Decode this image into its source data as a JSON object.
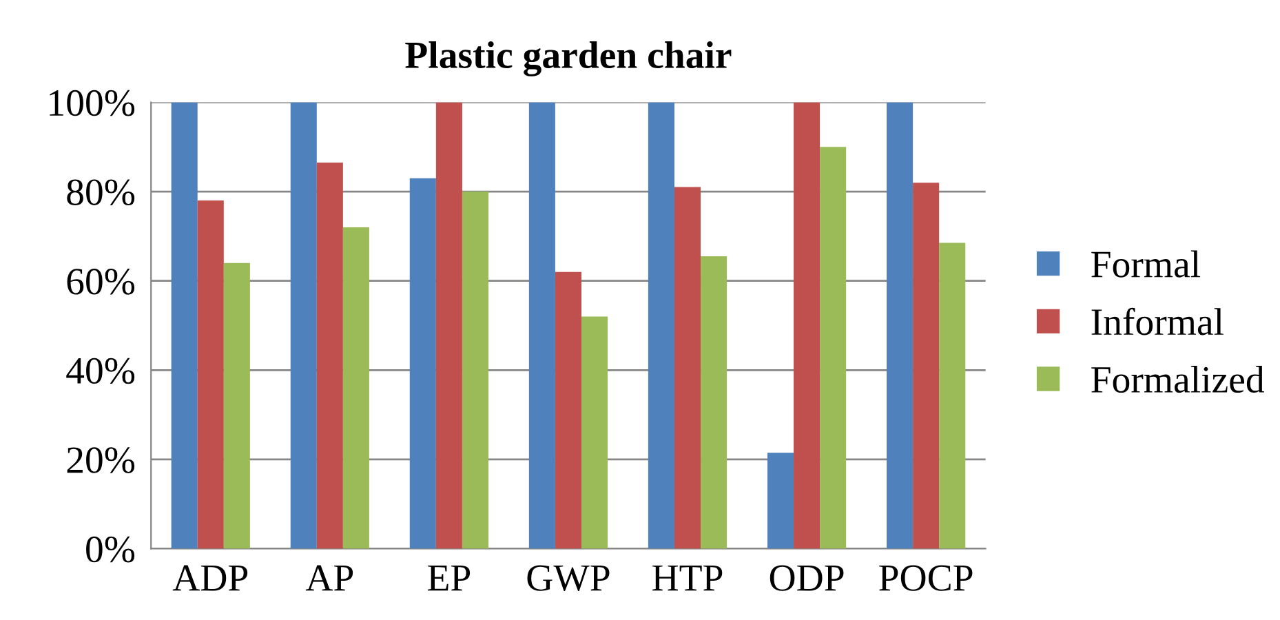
{
  "chart_data": {
    "type": "bar",
    "title": "Plastic garden chair",
    "categories": [
      "ADP",
      "AP",
      "EP",
      "GWP",
      "HTP",
      "ODP",
      "POCP"
    ],
    "series": [
      {
        "name": "Formal",
        "color": "#4f81bd",
        "values": [
          100,
          100,
          83,
          100,
          100,
          21.5,
          100
        ]
      },
      {
        "name": "Informal",
        "color": "#c0504d",
        "values": [
          78,
          86.5,
          100,
          62,
          81,
          100,
          82
        ]
      },
      {
        "name": "Formalized",
        "color": "#9bbb59",
        "values": [
          64,
          72,
          80,
          52,
          65.5,
          90,
          68.5
        ]
      }
    ],
    "ylim": [
      0,
      100
    ],
    "yticks": [
      {
        "value": 0,
        "label": "0%"
      },
      {
        "value": 20,
        "label": "20%"
      },
      {
        "value": 40,
        "label": "40%"
      },
      {
        "value": 60,
        "label": "60%"
      },
      {
        "value": 80,
        "label": "80%"
      },
      {
        "value": 100,
        "label": "100%"
      }
    ],
    "grid": "y",
    "legend": "right"
  }
}
